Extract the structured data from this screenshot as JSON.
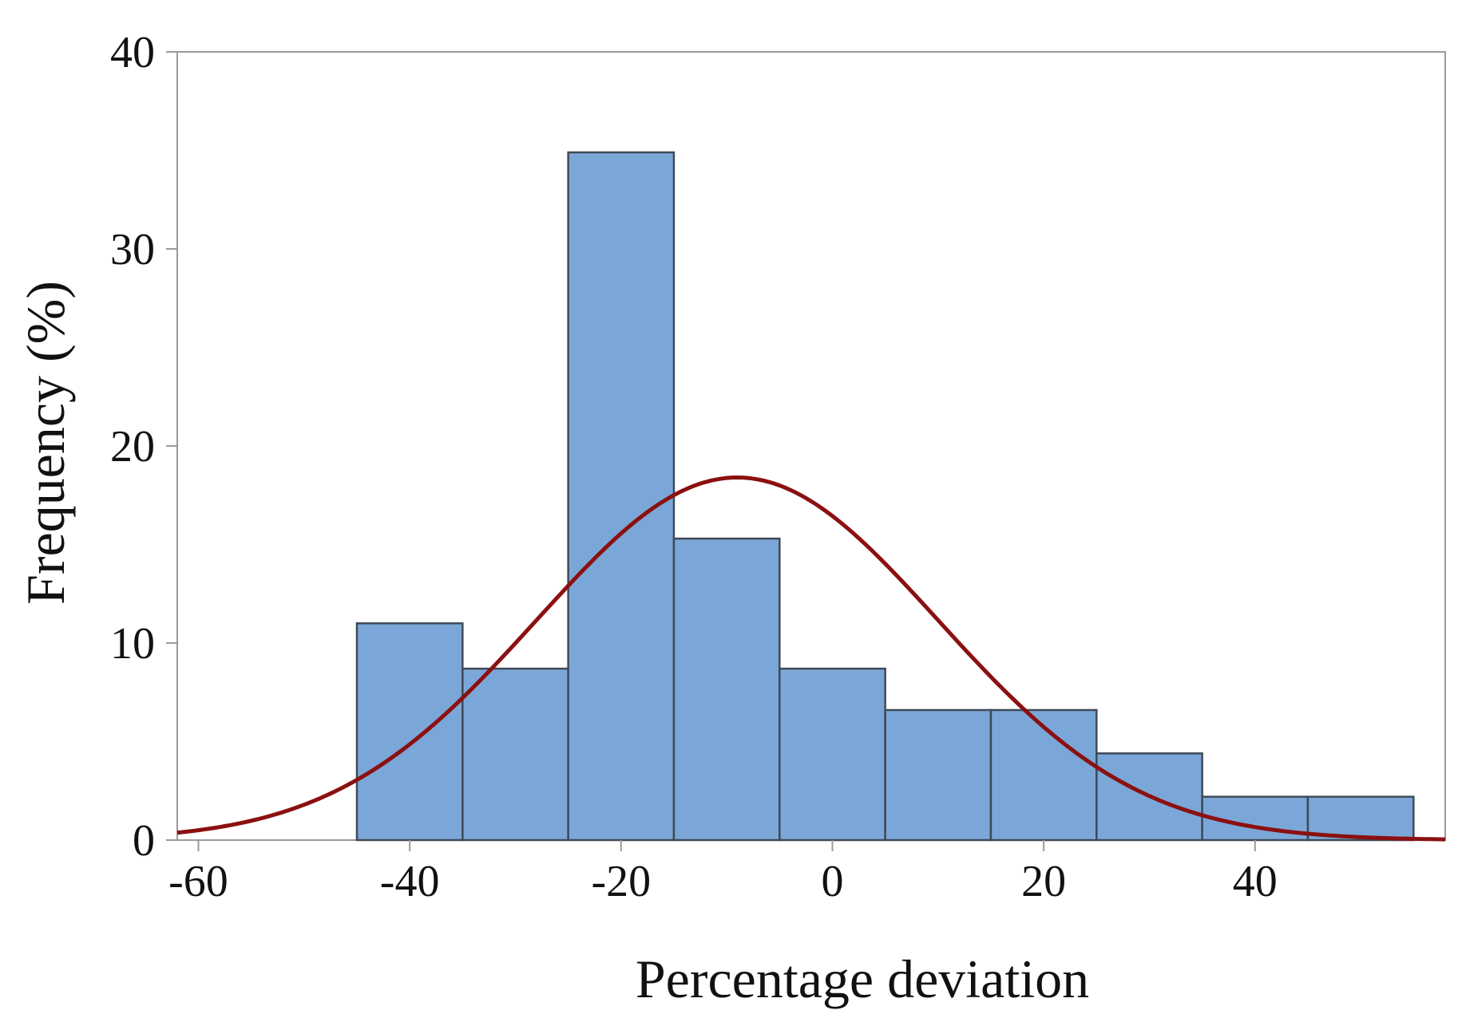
{
  "chart_data": {
    "type": "bar",
    "subtype": "histogram-with-normal-fit",
    "title": "",
    "xlabel": "Percentage deviation",
    "ylabel": "Frequency (%)",
    "xlim": [
      -62,
      58
    ],
    "ylim": [
      0,
      40
    ],
    "xticks": [
      -60,
      -40,
      -20,
      0,
      20,
      40
    ],
    "xtick_labels": [
      "-60",
      "-40",
      "-20",
      "0",
      "20",
      "40"
    ],
    "yticks": [
      0,
      10,
      20,
      30,
      40
    ],
    "ytick_labels": [
      "0",
      "10",
      "20",
      "30",
      "40"
    ],
    "grid": false,
    "bins": [
      {
        "start": -45,
        "end": -35,
        "value": 11.0
      },
      {
        "start": -35,
        "end": -25,
        "value": 8.7
      },
      {
        "start": -25,
        "end": -15,
        "value": 34.9
      },
      {
        "start": -15,
        "end": -5,
        "value": 15.3
      },
      {
        "start": -5,
        "end": 5,
        "value": 8.7
      },
      {
        "start": 5,
        "end": 15,
        "value": 6.6
      },
      {
        "start": 15,
        "end": 25,
        "value": 6.6
      },
      {
        "start": 25,
        "end": 35,
        "value": 4.4
      },
      {
        "start": 35,
        "end": 45,
        "value": 2.2
      },
      {
        "start": 45,
        "end": 55,
        "value": 2.2
      }
    ],
    "fit_curve": {
      "type": "normal",
      "mean": -9,
      "std_dev": 19,
      "peak": 18.4
    },
    "colors": {
      "bar_fill": "#7ba7d8",
      "bar_edge": "#3f4a56",
      "curve": "#8b1010",
      "axis": "#9a9a9a"
    }
  }
}
